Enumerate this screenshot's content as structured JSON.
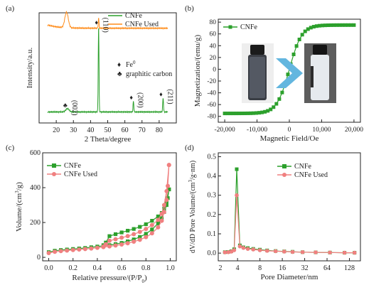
{
  "chart_data": [
    {
      "panel": "(a)",
      "type": "line",
      "xlabel": "2 Theta/degree",
      "ylabel": "Intensity/a.u.",
      "xlim": [
        10,
        90
      ],
      "xticks": [
        20,
        30,
        40,
        50,
        60,
        70,
        80
      ],
      "legend": {
        "position": "top-right",
        "entries": [
          "CNFe",
          "CNFe Used"
        ]
      },
      "colors": {
        "CNFe": "#2ca02c",
        "CNFe Used": "#ff8c1a"
      },
      "marker_legend": [
        {
          "symbol": "♦",
          "label": "Fe",
          "sup": "0"
        },
        {
          "symbol": "♣",
          "label": "graphitic carbon"
        }
      ],
      "peak_labels": [
        {
          "text": "(002)",
          "x": 26.5,
          "symbol": "♣"
        },
        {
          "text": "(110)",
          "x": 44.7,
          "symbol": "♦"
        },
        {
          "text": "(200)",
          "x": 65.0,
          "symbol": "♦"
        },
        {
          "text": "(211)",
          "x": 82.3,
          "symbol": "♦"
        }
      ],
      "series": [
        {
          "name": "CNFe",
          "baseline": 0.1,
          "peaks": [
            [
              26.5,
              0.03
            ],
            [
              44.7,
              0.78
            ],
            [
              65.0,
              0.1
            ],
            [
              82.3,
              0.13
            ]
          ]
        },
        {
          "name": "CNFe Used",
          "baseline": 0.86,
          "peaks": [
            [
              26.0,
              0.14
            ],
            [
              44.7,
              0.09
            ]
          ]
        }
      ]
    },
    {
      "panel": "(b)",
      "type": "line",
      "xlabel": "Magnetic Field/Oe",
      "ylabel": "Magnetization/(emu/g)",
      "xlim": [
        -22000,
        22000
      ],
      "ylim": [
        -90,
        85
      ],
      "xticks": [
        -20000,
        -10000,
        0,
        10000,
        20000
      ],
      "xtick_labels": [
        "-20,000",
        "-10,000",
        "0",
        "10,000",
        "20,000"
      ],
      "yticks": [
        -80,
        -60,
        -40,
        -20,
        0,
        20,
        40,
        60,
        80
      ],
      "legend": {
        "position": "top-left",
        "entries": [
          "CNFe"
        ]
      },
      "series": [
        {
          "name": "CNFe",
          "color": "#2ca02c",
          "ms": 75,
          "scale": 3800,
          "x_start": -20000,
          "x_end": 20000,
          "points": 46
        }
      ]
    },
    {
      "panel": "(c)",
      "type": "line",
      "xlabel": "Relative pressure/(P/P",
      "xlabel_sub": "0",
      "xlabel_end": ")",
      "ylabel": "Volume/(cm",
      "ylabel_sup": "3",
      "ylabel_end": "/g)",
      "xlim": [
        -0.05,
        1.05
      ],
      "ylim": [
        -20,
        600
      ],
      "xticks": [
        0.0,
        0.2,
        0.4,
        0.6,
        0.8,
        1.0
      ],
      "xtick_labels": [
        "0.0",
        "0.2",
        "0.4",
        "0.6",
        "0.8",
        "1.0"
      ],
      "yticks": [
        0,
        200,
        400,
        600
      ],
      "legend": {
        "position": "top-left",
        "entries": [
          "CNFe",
          "CNFe Used"
        ]
      },
      "series": [
        {
          "name": "CNFe",
          "color": "#2ca02c",
          "marker": "square",
          "adsorption": [
            [
              0.0,
              30
            ],
            [
              0.05,
              38
            ],
            [
              0.1,
              42
            ],
            [
              0.15,
              45
            ],
            [
              0.2,
              48
            ],
            [
              0.25,
              51
            ],
            [
              0.3,
              54
            ],
            [
              0.35,
              58
            ],
            [
              0.4,
              62
            ],
            [
              0.45,
              66
            ],
            [
              0.5,
              70
            ],
            [
              0.55,
              76
            ],
            [
              0.6,
              83
            ],
            [
              0.65,
              92
            ],
            [
              0.7,
              103
            ],
            [
              0.75,
              117
            ],
            [
              0.8,
              135
            ],
            [
              0.85,
              160
            ],
            [
              0.9,
              195
            ],
            [
              0.93,
              225
            ],
            [
              0.95,
              260
            ],
            [
              0.97,
              300
            ],
            [
              0.98,
              340
            ],
            [
              0.99,
              390
            ]
          ],
          "desorption": [
            [
              0.99,
              390
            ],
            [
              0.97,
              320
            ],
            [
              0.95,
              280
            ],
            [
              0.93,
              255
            ],
            [
              0.9,
              235
            ],
            [
              0.85,
              210
            ],
            [
              0.8,
              190
            ],
            [
              0.75,
              175
            ],
            [
              0.7,
              163
            ],
            [
              0.65,
              153
            ],
            [
              0.6,
              143
            ],
            [
              0.55,
              133
            ],
            [
              0.5,
              122
            ],
            [
              0.47,
              85
            ],
            [
              0.45,
              70
            ]
          ]
        },
        {
          "name": "CNFe Used",
          "color": "#f08080",
          "marker": "circle",
          "adsorption": [
            [
              0.0,
              25
            ],
            [
              0.05,
              32
            ],
            [
              0.1,
              36
            ],
            [
              0.15,
              39
            ],
            [
              0.2,
              42
            ],
            [
              0.25,
              45
            ],
            [
              0.3,
              48
            ],
            [
              0.35,
              51
            ],
            [
              0.4,
              55
            ],
            [
              0.45,
              59
            ],
            [
              0.5,
              63
            ],
            [
              0.55,
              68
            ],
            [
              0.6,
              74
            ],
            [
              0.65,
              81
            ],
            [
              0.7,
              90
            ],
            [
              0.75,
              101
            ],
            [
              0.8,
              116
            ],
            [
              0.85,
              138
            ],
            [
              0.9,
              172
            ],
            [
              0.93,
              210
            ],
            [
              0.95,
              260
            ],
            [
              0.97,
              330
            ],
            [
              0.98,
              410
            ],
            [
              0.99,
              530
            ]
          ],
          "desorption": [
            [
              0.99,
              530
            ],
            [
              0.97,
              380
            ],
            [
              0.95,
              300
            ],
            [
              0.93,
              250
            ],
            [
              0.9,
              215
            ],
            [
              0.85,
              185
            ],
            [
              0.8,
              163
            ],
            [
              0.75,
              146
            ],
            [
              0.7,
              133
            ],
            [
              0.65,
              122
            ],
            [
              0.6,
              113
            ],
            [
              0.55,
              104
            ],
            [
              0.5,
              95
            ],
            [
              0.47,
              75
            ],
            [
              0.45,
              62
            ]
          ]
        }
      ]
    },
    {
      "panel": "(d)",
      "type": "line",
      "xlabel": "Pore Diameter/nm",
      "ylabel": "dV/dD Pore Volume/(cm",
      "ylabel_sup": "3",
      "ylabel_end": "/g·nm)",
      "xscale": "log2",
      "xlim": [
        2.2,
        180
      ],
      "ylim": [
        -0.04,
        0.52
      ],
      "xticks": [
        2,
        4,
        8,
        16,
        32,
        64,
        128
      ],
      "yticks": [
        0.0,
        0.1,
        0.2,
        0.3,
        0.4,
        0.5
      ],
      "ytick_labels": [
        "0.0",
        "0.1",
        "0.2",
        "0.3",
        "0.4",
        "0.5"
      ],
      "legend": {
        "position": "top-right",
        "entries": [
          "CNFe",
          "CNFe Used"
        ]
      },
      "series": [
        {
          "name": "CNFe",
          "color": "#2ca02c",
          "marker": "square",
          "points": [
            [
              2.7,
              0.005
            ],
            [
              3.0,
              0.006
            ],
            [
              3.3,
              0.01
            ],
            [
              3.6,
              0.02
            ],
            [
              3.9,
              0.435
            ],
            [
              4.3,
              0.04
            ],
            [
              4.8,
              0.03
            ],
            [
              5.5,
              0.026
            ],
            [
              6.5,
              0.022
            ],
            [
              8,
              0.018
            ],
            [
              10,
              0.014
            ],
            [
              13,
              0.011
            ],
            [
              17,
              0.009
            ],
            [
              22,
              0.007
            ],
            [
              30,
              0.005
            ],
            [
              45,
              0.004
            ],
            [
              70,
              0.003
            ],
            [
              110,
              0.002
            ],
            [
              150,
              0.002
            ]
          ]
        },
        {
          "name": "CNFe Used",
          "color": "#f08080",
          "marker": "circle",
          "points": [
            [
              2.7,
              0.004
            ],
            [
              3.0,
              0.005
            ],
            [
              3.3,
              0.008
            ],
            [
              3.6,
              0.015
            ],
            [
              3.9,
              0.3
            ],
            [
              4.3,
              0.035
            ],
            [
              4.8,
              0.027
            ],
            [
              5.5,
              0.022
            ],
            [
              6.5,
              0.019
            ],
            [
              8,
              0.015
            ],
            [
              10,
              0.012
            ],
            [
              13,
              0.01
            ],
            [
              17,
              0.008
            ],
            [
              22,
              0.006
            ],
            [
              30,
              0.005
            ],
            [
              45,
              0.004
            ],
            [
              70,
              0.003
            ],
            [
              110,
              0.002
            ],
            [
              150,
              0.002
            ]
          ]
        }
      ]
    }
  ]
}
